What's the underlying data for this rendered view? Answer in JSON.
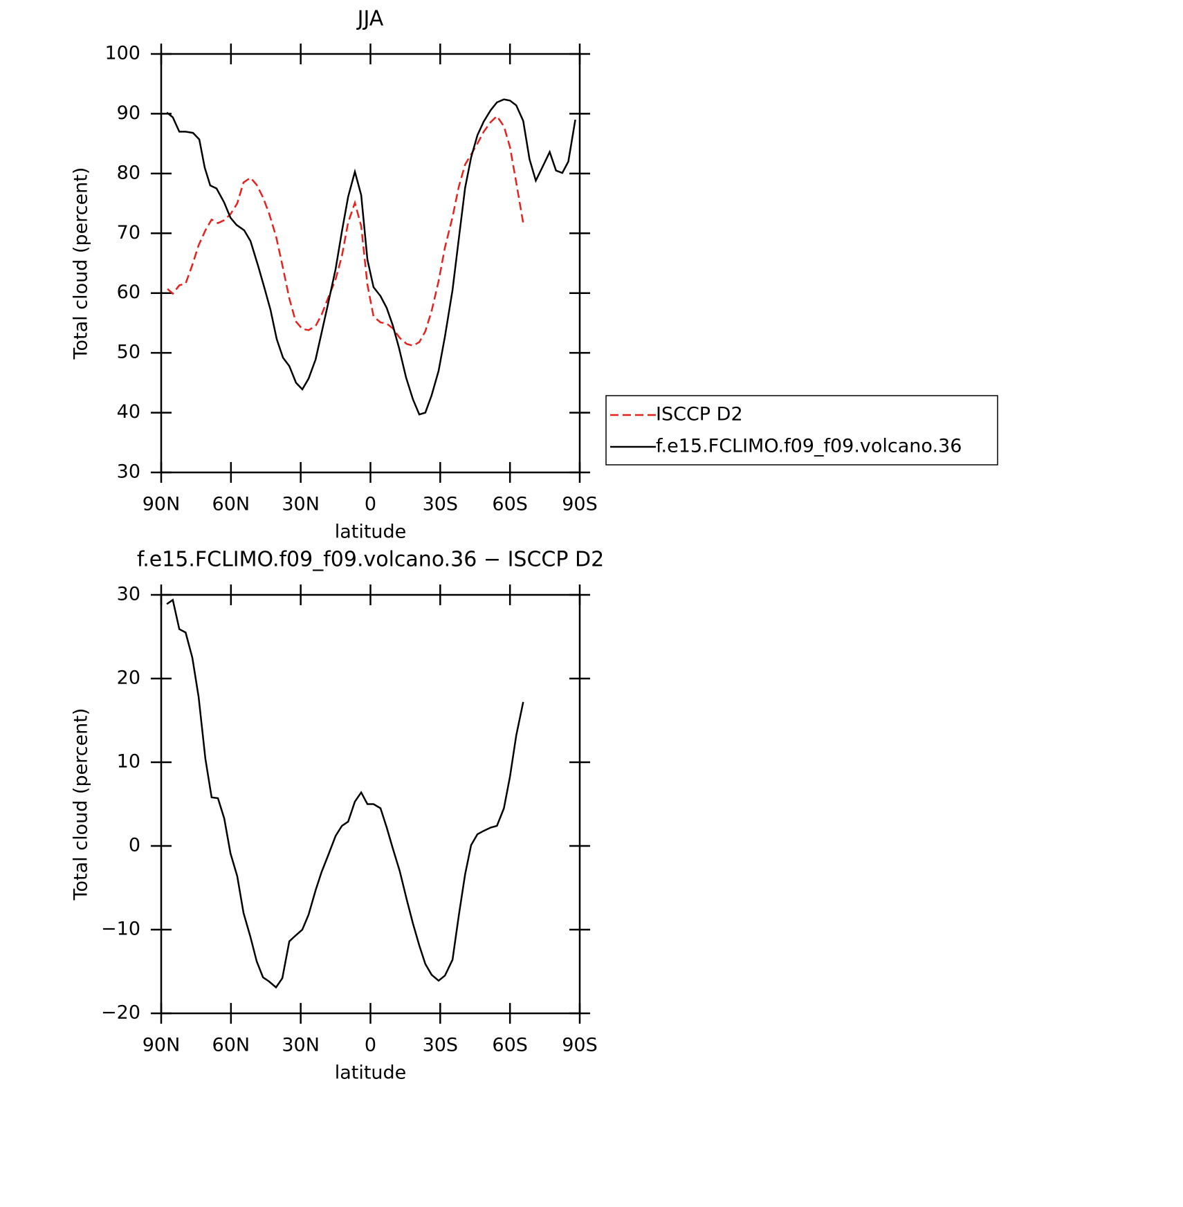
{
  "chart_data": [
    {
      "type": "line",
      "title": "JJA",
      "xlabel": "latitude",
      "ylabel": "Total cloud (percent)",
      "xlim": [
        90,
        -90
      ],
      "xticks": [
        {
          "value": 90,
          "label": "90N"
        },
        {
          "value": 60,
          "label": "60N"
        },
        {
          "value": 30,
          "label": "30N"
        },
        0,
        {
          "value": -30,
          "label": "30S"
        },
        {
          "value": -60,
          "label": "60S"
        },
        {
          "value": -90,
          "label": "90S"
        }
      ],
      "ylim": [
        30,
        100
      ],
      "yticks": [
        30,
        40,
        50,
        60,
        70,
        80,
        90,
        100
      ],
      "legend": "right",
      "series": [
        {
          "name": "ISCCP D2",
          "color": "#e8201c",
          "dash": "dashed",
          "x": [
            87.3,
            85,
            82.2,
            79.5,
            76.6,
            73.9,
            71,
            68.3,
            65.6,
            62.9,
            60.2,
            57.3,
            54.6,
            51.6,
            48.9,
            46.2,
            43.6,
            40.6,
            37.9,
            34.9,
            32.2,
            29.3,
            26.6,
            23.6,
            21,
            18.3,
            15,
            12.3,
            9.6,
            6.7,
            4,
            1.3,
            -1.3,
            -4.3,
            -7,
            -9.6,
            -12.6,
            -15.6,
            -18.3,
            -21,
            -23.6,
            -26.3,
            -29.3,
            -32,
            -35.3,
            -38,
            -40.7,
            -43.3,
            -46,
            -48.7,
            -51.7,
            -54.4,
            -57.4,
            -60,
            -62.7,
            -65.7
          ],
          "values": [
            60.7,
            59.9,
            61.3,
            61.6,
            64.7,
            68,
            70.5,
            72.3,
            71.7,
            72.2,
            73.2,
            75,
            78.5,
            79.3,
            78.1,
            76,
            73.3,
            69.5,
            64.7,
            59.1,
            55.3,
            54,
            53.8,
            54.5,
            56.4,
            59.1,
            62.3,
            66.2,
            71.8,
            75.1,
            71.2,
            61.4,
            56.1,
            55.1,
            54.9,
            54.1,
            52.5,
            51.5,
            51.2,
            51.8,
            53.6,
            57,
            62,
            67.6,
            72.7,
            77.8,
            81.5,
            83.2,
            85,
            87,
            88.6,
            89.6,
            87.9,
            84.4,
            78.5,
            71.7
          ]
        },
        {
          "name": "f.e15.FCLIMO.f09_f09.volcano.36",
          "color": "#000000",
          "dash": "solid",
          "x": [
            87.6,
            85,
            82.2,
            79.5,
            76.3,
            73.6,
            71.3,
            68.9,
            66.2,
            63,
            60.2,
            57.6,
            54.3,
            51.6,
            48.3,
            45.7,
            43,
            40.3,
            37.6,
            34.9,
            32,
            29.3,
            26.6,
            23.6,
            21,
            18.3,
            15,
            12.3,
            9.6,
            6.7,
            4,
            1.3,
            -1.3,
            -4.3,
            -7,
            -9.6,
            -12.3,
            -15.3,
            -18.3,
            -21,
            -23.6,
            -26.3,
            -29.3,
            -32,
            -35.3,
            -38,
            -40.7,
            -43.3,
            -46,
            -48.7,
            -51.7,
            -54.4,
            -57.4,
            -60,
            -62.7,
            -65.7,
            -68.4,
            -71.1,
            -74.1,
            -77.1,
            -79.8,
            -82.5,
            -85.1,
            -88.1
          ],
          "values": [
            90.2,
            89.4,
            87,
            87,
            86.8,
            85.7,
            81,
            78,
            77.5,
            75.2,
            72.6,
            71.4,
            70.5,
            68.7,
            64.5,
            61,
            57.2,
            52.3,
            49.2,
            47.8,
            45,
            43.9,
            45.7,
            48.9,
            53.4,
            58.1,
            64,
            70.3,
            76.1,
            80.3,
            76.4,
            65.6,
            61,
            59.5,
            57.5,
            54.6,
            50.8,
            45.9,
            42.2,
            39.7,
            40,
            42.9,
            47,
            52.7,
            60.5,
            69.1,
            77.6,
            82.7,
            86.4,
            88.7,
            90.6,
            91.9,
            92.4,
            92.2,
            91.4,
            88.8,
            82.4,
            78.8,
            81.2,
            83.6,
            80.5,
            80.1,
            82,
            89
          ]
        }
      ]
    },
    {
      "type": "line",
      "title": "f.e15.FCLIMO.f09_f09.volcano.36 − ISCCP D2",
      "xlabel": "latitude",
      "ylabel": "Total cloud (percent)",
      "xlim": [
        90,
        -90
      ],
      "xticks": [
        {
          "value": 90,
          "label": "90N"
        },
        {
          "value": 60,
          "label": "60N"
        },
        {
          "value": 30,
          "label": "30N"
        },
        0,
        {
          "value": -30,
          "label": "30S"
        },
        {
          "value": -60,
          "label": "60S"
        },
        {
          "value": -90,
          "label": "90S"
        }
      ],
      "ylim": [
        -20,
        30
      ],
      "yticks": [
        {
          "value": -20,
          "label": "−20"
        },
        {
          "value": -10,
          "label": "−10"
        },
        0,
        10,
        20,
        30
      ],
      "series": [
        {
          "color": "#000000",
          "dash": "solid",
          "x": [
            87.6,
            85,
            82.2,
            79.5,
            76.6,
            73.9,
            71,
            68.3,
            65.6,
            62.9,
            60.2,
            57.3,
            54.6,
            51.6,
            48.9,
            46.2,
            43.6,
            40.6,
            37.9,
            34.9,
            32.2,
            29.3,
            26.6,
            23.6,
            21,
            18.3,
            15,
            12.3,
            9.6,
            6.7,
            4,
            1.3,
            -1.3,
            -4.3,
            -7,
            -9.6,
            -12.6,
            -15.6,
            -18.3,
            -21,
            -23.6,
            -26.3,
            -29.3,
            -32,
            -35.3,
            -38,
            -40.7,
            -43.3,
            -46,
            -48.7,
            -51.7,
            -54.4,
            -57.4,
            -60,
            -62.7,
            -65.7
          ],
          "values": [
            28.9,
            29.4,
            25.9,
            25.5,
            22.5,
            17.8,
            10.4,
            5.8,
            5.7,
            3.3,
            -0.9,
            -3.6,
            -8,
            -10.9,
            -13.8,
            -15.7,
            -16.2,
            -16.9,
            -15.8,
            -11.4,
            -10.7,
            -10,
            -8.2,
            -5.3,
            -3.1,
            -1.2,
            1.2,
            2.4,
            2.9,
            5.3,
            6.4,
            5,
            5,
            4.5,
            2.2,
            -0.3,
            -3,
            -6.4,
            -9.3,
            -11.9,
            -14.1,
            -15.4,
            -16.1,
            -15.5,
            -13.6,
            -8.3,
            -3.4,
            0.1,
            1.4,
            1.8,
            2.2,
            2.4,
            4.5,
            8.3,
            13.2,
            17.2
          ]
        }
      ]
    }
  ]
}
